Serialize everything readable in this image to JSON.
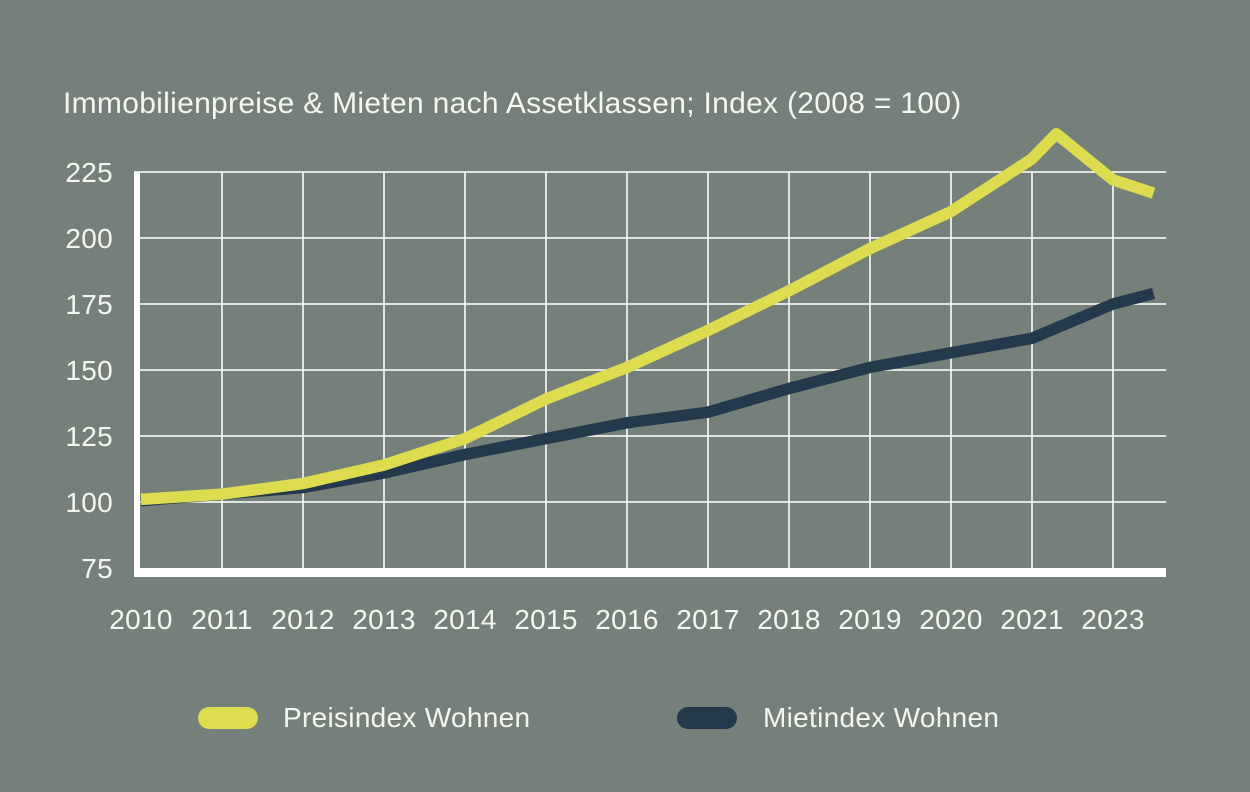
{
  "title": "Immobilienpreise & Mieten nach Assetklassen; Index (2008 = 100)",
  "colors": {
    "background": "#75807b",
    "price_line": "#dcdc4e",
    "rent_line": "#24394b",
    "text": "#f5f6f2",
    "gridline": "#ffffff",
    "axis": "#ffffff"
  },
  "chart_data": {
    "type": "line",
    "title": "Immobilienpreise & Mieten nach Assetklassen; Index (2008 = 100)",
    "x_tick_labels": [
      "2010",
      "2011",
      "2012",
      "2013",
      "2014",
      "2015",
      "2016",
      "2017",
      "2018",
      "2019",
      "2020",
      "2021",
      "2023"
    ],
    "x_unit": "tick index (0 = first tick '2010', ticks evenly spaced, '2022' label not shown)",
    "y_ticks": [
      75,
      100,
      125,
      150,
      175,
      200,
      225
    ],
    "ylim": [
      75,
      245
    ],
    "grid": true,
    "legend_position": "bottom",
    "series": [
      {
        "name": "Preisindex Wohnen",
        "color": "#dcdc4e",
        "points": [
          [
            0,
            101
          ],
          [
            1,
            103
          ],
          [
            2,
            107
          ],
          [
            3,
            114
          ],
          [
            4,
            124
          ],
          [
            5,
            139
          ],
          [
            6,
            151
          ],
          [
            7,
            165
          ],
          [
            8,
            180
          ],
          [
            9,
            196
          ],
          [
            10,
            210
          ],
          [
            11,
            230
          ],
          [
            11.3,
            239.5
          ],
          [
            12,
            222
          ],
          [
            12.5,
            217
          ]
        ]
      },
      {
        "name": "Mietindex Wohnen",
        "color": "#24394b",
        "points": [
          [
            0,
            100.5
          ],
          [
            1,
            103
          ],
          [
            2,
            105.5
          ],
          [
            3,
            111
          ],
          [
            4,
            118
          ],
          [
            5,
            124
          ],
          [
            6,
            130
          ],
          [
            7,
            134
          ],
          [
            8,
            143
          ],
          [
            9,
            151
          ],
          [
            10,
            156.5
          ],
          [
            11,
            162
          ],
          [
            12,
            175
          ],
          [
            12.5,
            179
          ]
        ]
      }
    ]
  },
  "legend": {
    "items": [
      {
        "label": "Preisindex Wohnen",
        "color": "#dcdc4e"
      },
      {
        "label": "Mietindex Wohnen",
        "color": "#24394b"
      }
    ]
  }
}
